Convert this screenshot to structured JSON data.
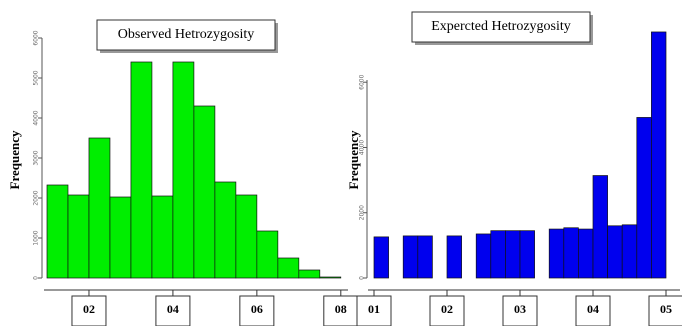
{
  "chart_data": [
    {
      "type": "histogram",
      "title": "Observed  Hetrozygosity",
      "ylabel": "Frequency",
      "color": "#00ee00",
      "bins": [
        0.1,
        0.15,
        0.2,
        0.25,
        0.3,
        0.35,
        0.4,
        0.45,
        0.5,
        0.55,
        0.6,
        0.65,
        0.7,
        0.75,
        0.8
      ],
      "values": [
        2325,
        2075,
        3500,
        2025,
        5400,
        2050,
        5400,
        4300,
        2400,
        2075,
        1175,
        500,
        200,
        25
      ],
      "xlim": [
        0.1,
        0.81
      ],
      "ylim": [
        0,
        6000
      ],
      "xticks": [
        {
          "value": 0.2,
          "label": "02"
        },
        {
          "value": 0.4,
          "label": "04"
        },
        {
          "value": 0.6,
          "label": "06"
        },
        {
          "value": 0.8,
          "label": "08"
        }
      ],
      "yticks": [
        0,
        1000,
        2000,
        3000,
        4000,
        5000,
        6000
      ]
    },
    {
      "type": "histogram",
      "title": "Expercted Hetrozygosity",
      "ylabel": "Frequency",
      "color": "#0000ee",
      "bins": [
        0.1,
        0.12,
        0.14,
        0.16,
        0.18,
        0.2,
        0.22,
        0.24,
        0.26,
        0.28,
        0.3,
        0.32,
        0.34,
        0.36,
        0.38,
        0.4,
        0.42,
        0.44,
        0.46,
        0.48,
        0.5
      ],
      "values": [
        1260,
        0,
        1290,
        1290,
        0,
        1290,
        0,
        1350,
        1450,
        1450,
        1450,
        0,
        1500,
        1540,
        1500,
        3140,
        1600,
        1630,
        4920,
        7540
      ],
      "xlim": [
        0.1,
        0.5
      ],
      "ylim": [
        0,
        7600
      ],
      "xticks": [
        {
          "value": 0.1,
          "label": "01"
        },
        {
          "value": 0.2,
          "label": "02"
        },
        {
          "value": 0.3,
          "label": "03"
        },
        {
          "value": 0.4,
          "label": "04"
        },
        {
          "value": 0.5,
          "label": "05"
        }
      ],
      "yticks": [
        0,
        2000,
        4000,
        6000
      ]
    }
  ]
}
